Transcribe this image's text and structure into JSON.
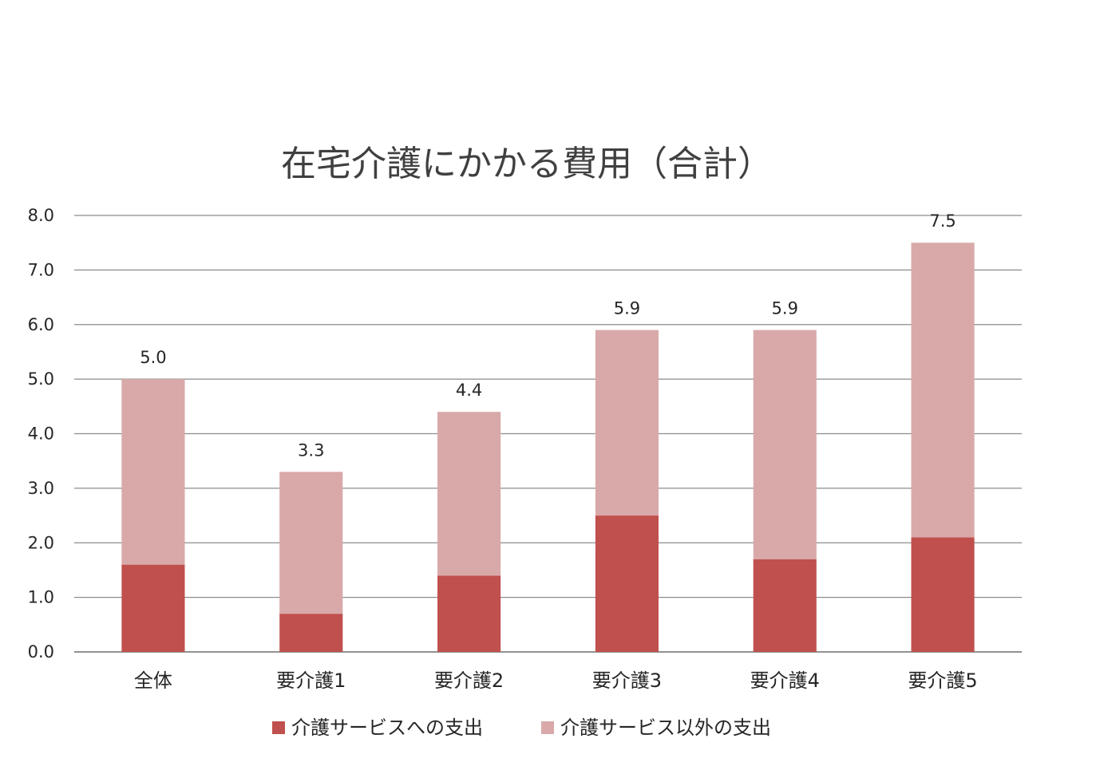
{
  "chart_data": {
    "type": "bar",
    "stacked": true,
    "title": "在宅介護にかかる費用（合計）",
    "xlabel": "",
    "ylabel": "",
    "ylim": [
      0,
      8
    ],
    "y_ticks": [
      "0.0",
      "1.0",
      "2.0",
      "3.0",
      "4.0",
      "5.0",
      "6.0",
      "7.0",
      "8.0"
    ],
    "grid": true,
    "legend_position": "bottom",
    "categories": [
      "全体",
      "要介護1",
      "要介護2",
      "要介護3",
      "要介護4",
      "要介護5"
    ],
    "series": [
      {
        "name": "介護サービスへの支出",
        "color": "#c0504d",
        "values": [
          1.6,
          0.7,
          1.4,
          2.5,
          1.7,
          2.1
        ]
      },
      {
        "name": "介護サービス以外の支出",
        "color": "#d9a9a9",
        "values": [
          3.4,
          2.6,
          3.0,
          3.4,
          4.2,
          5.4
        ]
      }
    ],
    "totals": [
      "5.0",
      "3.3",
      "4.4",
      "5.9",
      "5.9",
      "7.5"
    ]
  }
}
